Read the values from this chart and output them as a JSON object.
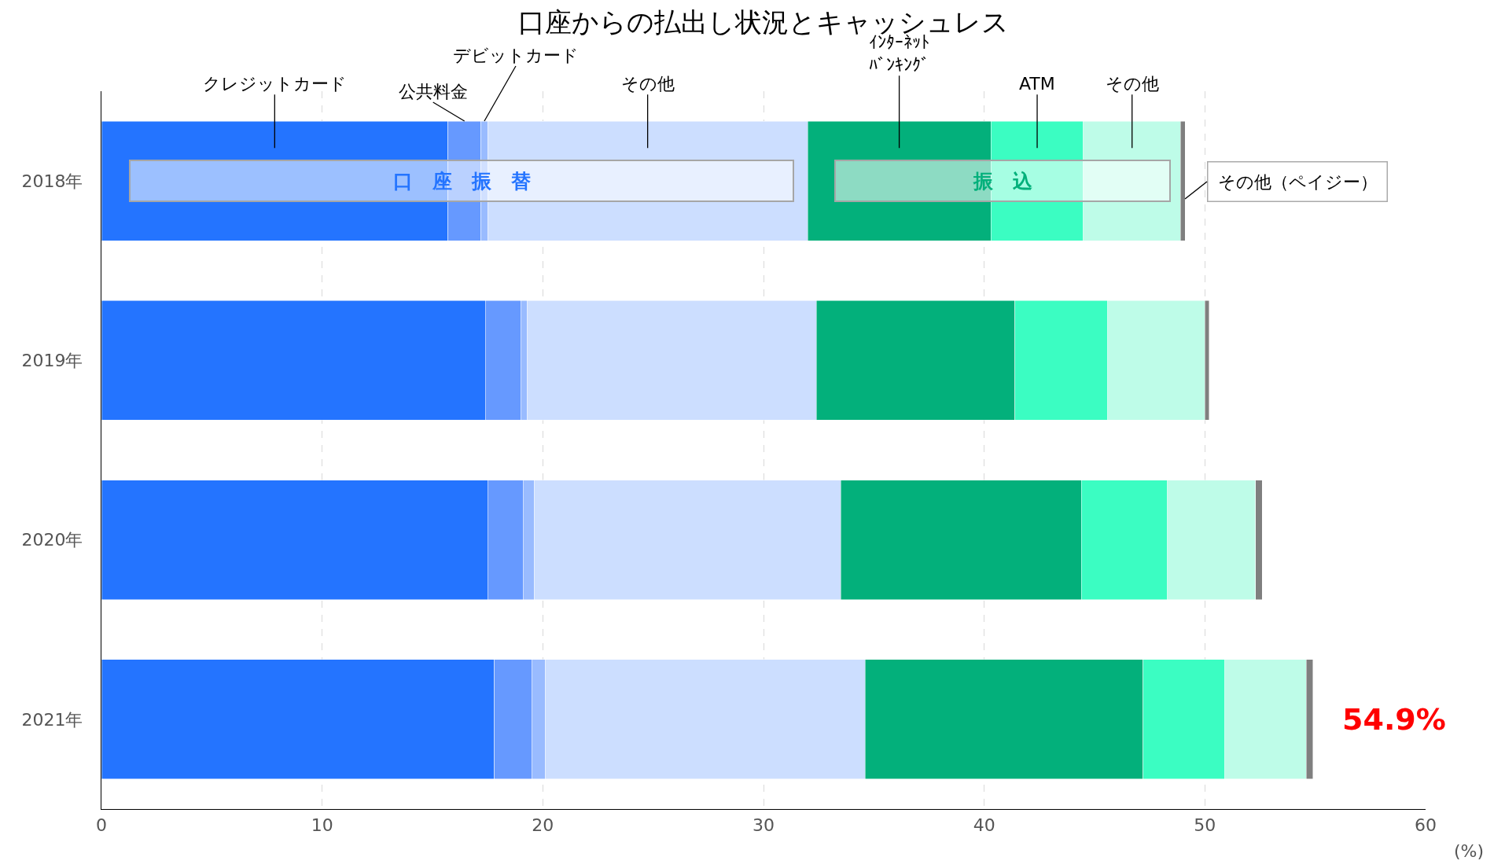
{
  "chart_data": {
    "type": "bar",
    "orientation": "horizontal",
    "stacked": true,
    "title": "口座からの払出し状況とキャッシュレス",
    "categories": [
      "2018年",
      "2019年",
      "2020年",
      "2021年"
    ],
    "series": [
      {
        "name": "クレジットカード",
        "color": "#2474ff",
        "values": [
          15.7,
          17.4,
          17.5,
          17.8
        ]
      },
      {
        "name": "公共料金",
        "color": "#6699ff",
        "values": [
          1.5,
          1.6,
          1.6,
          1.7
        ]
      },
      {
        "name": "デビットカード",
        "color": "#99bbff",
        "values": [
          0.3,
          0.3,
          0.5,
          0.6
        ]
      },
      {
        "name": "その他",
        "color": "#ccdeff",
        "values": [
          14.5,
          13.1,
          13.9,
          14.5
        ]
      },
      {
        "name": "ｲﾝﾀｰﾈｯﾄﾊﾞﾝｷﾝｸﾞ",
        "color": "#03b07b",
        "values": [
          8.3,
          9.0,
          10.9,
          12.6
        ]
      },
      {
        "name": "ATM",
        "color": "#3bfdc2",
        "values": [
          4.2,
          4.2,
          3.9,
          3.7
        ]
      },
      {
        "name": "その他",
        "color": "#befce8",
        "values": [
          4.4,
          4.4,
          4.0,
          3.7
        ]
      },
      {
        "name": "その他（ペイジー）",
        "color": "#7f7f7f",
        "values": [
          0.2,
          0.2,
          0.3,
          0.3
        ]
      }
    ],
    "xlim": [
      0,
      60
    ],
    "xticks": [
      0,
      10,
      20,
      30,
      40,
      50,
      60
    ],
    "grid": "x",
    "legend": false,
    "annotations": [
      "(%)",
      "口　座　振　替",
      "振　込",
      {
        "text": "54.9%",
        "x": 54.9,
        "y": "2021年"
      }
    ]
  }
}
